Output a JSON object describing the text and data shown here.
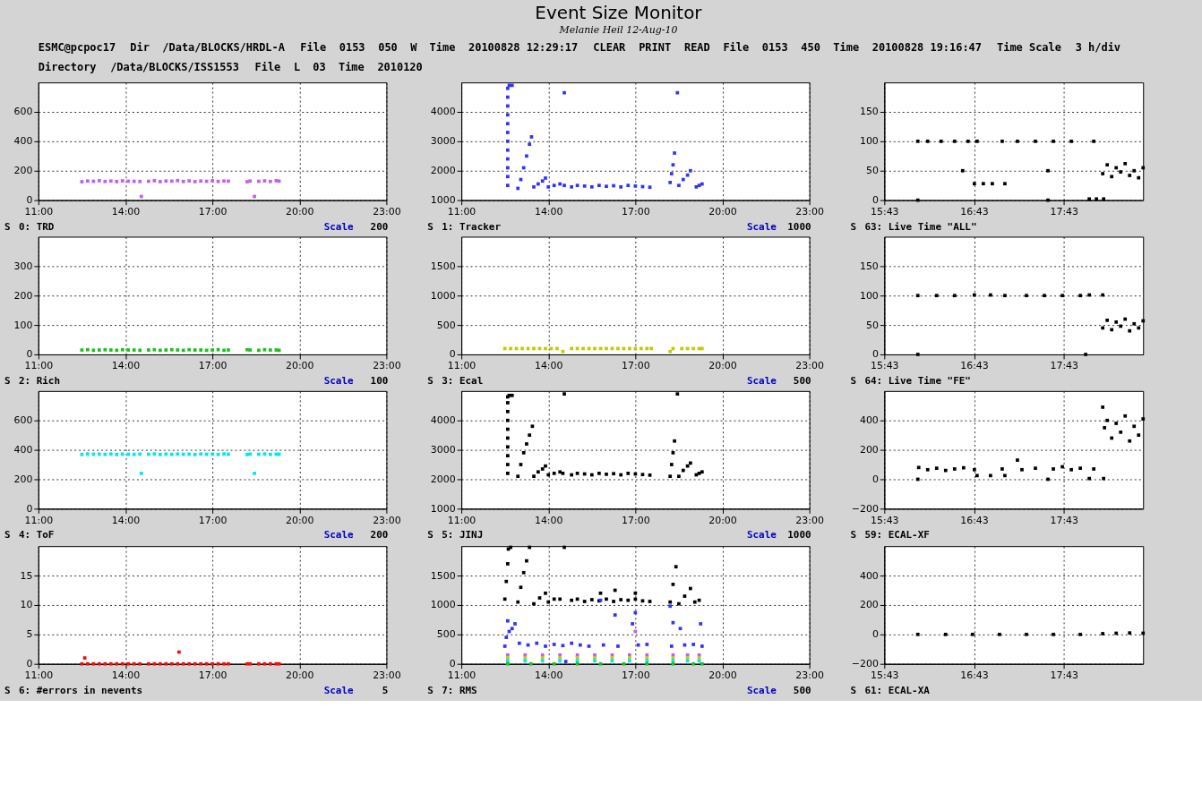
{
  "chart_data": [
    {
      "type": "other",
      "title": "Event Size Monitor",
      "subtitle": "Melanie Heil 12-Aug-10",
      "annotations": [
        "ESMC@pcpoc17",
        "Dir",
        "/Data/BLOCKS/HRDL-A",
        "File",
        "0153",
        "050",
        "W",
        "Time",
        "20100828 12:29:17",
        "CLEAR",
        "PRINT",
        "READ",
        "File",
        "0153",
        "450",
        "Time",
        "20100828 19:16:47",
        "Time Scale",
        "3 h/div",
        "Directory",
        "/Data/BLOCKS/ISS1553",
        "File",
        "L",
        "03",
        "Time",
        "2010120"
      ]
    },
    {
      "type": "scatter",
      "title": "0: TRD",
      "annotations": [
        "S",
        "Scale",
        "200"
      ],
      "xlim": [
        11,
        23
      ],
      "xticks": [
        {
          "value": 11,
          "label": "11:00"
        },
        {
          "value": 14,
          "label": "14:00"
        },
        {
          "value": 17,
          "label": "17:00"
        },
        {
          "value": 20,
          "label": "20:00"
        },
        {
          "value": 23,
          "label": "23:00"
        }
      ],
      "ylim": [
        0,
        800
      ],
      "yticks": [
        0,
        200,
        400,
        600
      ],
      "grid": true,
      "marker": "square",
      "series": [
        {
          "color": "#c060f0",
          "x": [
            12.5,
            12.7,
            12.9,
            13.1,
            13.3,
            13.5,
            13.7,
            13.9,
            14.1,
            14.3,
            14.5,
            14.55,
            14.8,
            15.0,
            15.2,
            15.4,
            15.6,
            15.8,
            16.0,
            16.2,
            16.4,
            16.6,
            16.8,
            17.0,
            17.2,
            17.4,
            17.55,
            18.2,
            18.3,
            18.45,
            18.6,
            18.8,
            19.0,
            19.2,
            19.3
          ],
          "values": [
            125,
            130,
            128,
            132,
            127,
            130,
            126,
            131,
            129,
            128,
            127,
            25,
            128,
            132,
            126,
            130,
            129,
            133,
            127,
            131,
            126,
            130,
            128,
            132,
            127,
            130,
            129,
            125,
            130,
            25,
            128,
            131,
            127,
            132,
            129
          ]
        }
      ]
    },
    {
      "type": "scatter",
      "title": "1: Tracker",
      "annotations": [
        "S",
        "Scale",
        "1000"
      ],
      "xlim": [
        11,
        23
      ],
      "xticks": [
        {
          "value": 11,
          "label": "11:00"
        },
        {
          "value": 14,
          "label": "14:00"
        },
        {
          "value": 17,
          "label": "17:00"
        },
        {
          "value": 20,
          "label": "20:00"
        },
        {
          "value": 23,
          "label": "23:00"
        }
      ],
      "ylim": [
        1000,
        5000
      ],
      "yticks": [
        1000,
        2000,
        3000,
        4000
      ],
      "grid": true,
      "marker": "square",
      "series": [
        {
          "color": "#3232ff",
          "x": [
            12.6,
            12.6,
            12.6,
            12.6,
            12.6,
            12.6,
            12.6,
            12.6,
            12.6,
            12.6,
            12.6,
            12.6,
            12.65,
            12.75,
            12.95,
            13.05,
            13.15,
            13.25,
            13.35,
            13.42,
            13.5,
            13.65,
            13.8,
            13.9,
            14.0,
            14.2,
            14.4,
            14.55,
            14.8,
            15.0,
            15.25,
            15.5,
            15.75,
            16.0,
            16.25,
            16.5,
            16.75,
            17.0,
            17.25,
            17.5,
            18.2,
            18.25,
            18.3,
            18.35,
            18.5,
            18.65,
            18.8,
            18.9,
            19.1,
            19.2,
            19.3,
            14.55,
            18.45
          ],
          "values": [
            1500,
            1800,
            2100,
            2400,
            2700,
            3000,
            3300,
            3600,
            3900,
            4200,
            4500,
            4800,
            4900,
            4900,
            1400,
            1700,
            2100,
            2500,
            2900,
            3150,
            1450,
            1550,
            1650,
            1750,
            1450,
            1500,
            1550,
            1500,
            1450,
            1500,
            1480,
            1450,
            1500,
            1470,
            1490,
            1450,
            1500,
            1480,
            1460,
            1440,
            1600,
            1900,
            2200,
            2600,
            1500,
            1700,
            1850,
            2000,
            1450,
            1500,
            1550,
            4650,
            4650
          ]
        }
      ]
    },
    {
      "type": "scatter",
      "title": "63: Live Time \"ALL\"",
      "annotations": [
        "S"
      ],
      "xlim": [
        15.7167,
        18.6
      ],
      "xticks": [
        {
          "value": 15.7167,
          "label": "15:43"
        },
        {
          "value": 16.7167,
          "label": "16:43"
        },
        {
          "value": 17.7167,
          "label": "17:43"
        }
      ],
      "ylim": [
        0,
        200
      ],
      "yticks": [
        0,
        50,
        100,
        150
      ],
      "grid": true,
      "marker": "square",
      "series": [
        {
          "color": "#000000",
          "x": [
            16.09,
            16.2,
            16.35,
            16.5,
            16.65,
            16.75,
            16.72,
            16.82,
            16.92,
            17.06,
            17.03,
            17.2,
            17.4,
            17.6,
            17.8,
            18.05,
            16.59,
            17.54,
            16.09,
            17.54,
            18.0,
            18.08,
            18.16,
            18.15,
            18.2,
            18.25,
            18.3,
            18.35,
            18.4,
            18.45,
            18.5,
            18.55,
            18.6
          ],
          "values": [
            100,
            100,
            100,
            100,
            100,
            100,
            28,
            28,
            28,
            28,
            100,
            100,
            100,
            100,
            100,
            100,
            50,
            50,
            0,
            0,
            2,
            2,
            2,
            45,
            60,
            40,
            55,
            48,
            62,
            42,
            50,
            38,
            55
          ]
        }
      ]
    },
    {
      "type": "scatter",
      "title": "2: Rich",
      "annotations": [
        "S",
        "Scale",
        "100"
      ],
      "xlim": [
        11,
        23
      ],
      "xticks": [
        {
          "value": 11,
          "label": "11:00"
        },
        {
          "value": 14,
          "label": "14:00"
        },
        {
          "value": 17,
          "label": "17:00"
        },
        {
          "value": 20,
          "label": "20:00"
        },
        {
          "value": 23,
          "label": "23:00"
        }
      ],
      "ylim": [
        0,
        400
      ],
      "yticks": [
        0,
        100,
        200,
        300
      ],
      "grid": true,
      "marker": "square",
      "series": [
        {
          "color": "#20c020",
          "x": [
            12.5,
            12.7,
            12.9,
            13.1,
            13.3,
            13.5,
            13.7,
            13.9,
            14.1,
            14.3,
            14.5,
            14.8,
            15.0,
            15.2,
            15.4,
            15.6,
            15.8,
            16.0,
            16.2,
            16.4,
            16.6,
            16.8,
            17.0,
            17.2,
            17.4,
            17.55,
            18.2,
            18.3,
            18.6,
            18.8,
            19.0,
            19.2,
            19.3
          ],
          "values": [
            15,
            16,
            14,
            15,
            16,
            15,
            14,
            16,
            15,
            15,
            14,
            15,
            16,
            14,
            15,
            16,
            15,
            14,
            16,
            15,
            15,
            14,
            15,
            16,
            14,
            15,
            16,
            15,
            14,
            16,
            15,
            15,
            14
          ]
        }
      ]
    },
    {
      "type": "scatter",
      "title": "3: Ecal",
      "annotations": [
        "S",
        "Scale",
        "500"
      ],
      "xlim": [
        11,
        23
      ],
      "xticks": [
        {
          "value": 11,
          "label": "11:00"
        },
        {
          "value": 14,
          "label": "14:00"
        },
        {
          "value": 17,
          "label": "17:00"
        },
        {
          "value": 20,
          "label": "20:00"
        },
        {
          "value": 23,
          "label": "23:00"
        }
      ],
      "ylim": [
        0,
        2000
      ],
      "yticks": [
        0,
        500,
        1000,
        1500
      ],
      "grid": true,
      "marker": "square",
      "series": [
        {
          "color": "#c8c800",
          "x": [
            12.5,
            12.7,
            12.9,
            13.1,
            13.3,
            13.5,
            13.7,
            13.9,
            14.1,
            14.3,
            14.5,
            14.8,
            15.0,
            15.2,
            15.4,
            15.6,
            15.8,
            16.0,
            16.2,
            16.4,
            16.6,
            16.8,
            17.0,
            17.2,
            17.4,
            17.55,
            18.2,
            18.3,
            18.6,
            18.8,
            19.0,
            19.2,
            19.3
          ],
          "values": [
            100,
            100,
            100,
            100,
            100,
            100,
            100,
            100,
            100,
            100,
            50,
            100,
            100,
            100,
            100,
            100,
            100,
            100,
            100,
            100,
            100,
            100,
            100,
            100,
            100,
            100,
            50,
            100,
            100,
            100,
            100,
            100,
            100
          ]
        }
      ]
    },
    {
      "type": "scatter",
      "title": "64: Live Time \"FE\"",
      "annotations": [
        "S"
      ],
      "xlim": [
        15.7167,
        18.6
      ],
      "xticks": [
        {
          "value": 15.7167,
          "label": "15:43"
        },
        {
          "value": 16.7167,
          "label": "16:43"
        },
        {
          "value": 17.7167,
          "label": "17:43"
        }
      ],
      "ylim": [
        0,
        200
      ],
      "yticks": [
        0,
        50,
        100,
        150
      ],
      "grid": true,
      "marker": "square",
      "series": [
        {
          "color": "#000000",
          "x": [
            16.09,
            16.3,
            16.5,
            16.72,
            16.9,
            17.06,
            17.3,
            17.5,
            17.7,
            17.9,
            18.0,
            18.15,
            16.09,
            17.96,
            18.15,
            18.2,
            18.25,
            18.3,
            18.35,
            18.4,
            18.45,
            18.5,
            18.55,
            18.6
          ],
          "values": [
            100,
            100,
            100,
            101,
            101,
            100,
            100,
            100,
            100,
            100,
            101,
            101,
            0,
            0,
            45,
            58,
            42,
            55,
            48,
            60,
            40,
            52,
            45,
            57
          ]
        }
      ]
    },
    {
      "type": "scatter",
      "title": "4: ToF",
      "annotations": [
        "S",
        "Scale",
        "200"
      ],
      "xlim": [
        11,
        23
      ],
      "xticks": [
        {
          "value": 11,
          "label": "11:00"
        },
        {
          "value": 14,
          "label": "14:00"
        },
        {
          "value": 17,
          "label": "17:00"
        },
        {
          "value": 20,
          "label": "20:00"
        },
        {
          "value": 23,
          "label": "23:00"
        }
      ],
      "ylim": [
        0,
        800
      ],
      "yticks": [
        0,
        200,
        400,
        600
      ],
      "grid": true,
      "marker": "square",
      "series": [
        {
          "color": "#00e8f0",
          "x": [
            12.5,
            12.7,
            12.9,
            13.1,
            13.3,
            13.5,
            13.7,
            13.9,
            14.1,
            14.3,
            14.5,
            14.55,
            14.8,
            15.0,
            15.2,
            15.4,
            15.6,
            15.8,
            16.0,
            16.2,
            16.4,
            16.6,
            16.8,
            17.0,
            17.2,
            17.4,
            17.55,
            18.2,
            18.3,
            18.45,
            18.6,
            18.8,
            19.0,
            19.2,
            19.3
          ],
          "values": [
            368,
            372,
            370,
            371,
            369,
            372,
            368,
            371,
            370,
            369,
            371,
            240,
            370,
            372,
            368,
            371,
            369,
            372,
            370,
            371,
            368,
            372,
            370,
            371,
            369,
            372,
            370,
            368,
            371,
            240,
            370,
            372,
            369,
            371,
            370
          ]
        }
      ]
    },
    {
      "type": "scatter",
      "title": "5: JINJ",
      "annotations": [
        "S",
        "Scale",
        "1000"
      ],
      "xlim": [
        11,
        23
      ],
      "xticks": [
        {
          "value": 11,
          "label": "11:00"
        },
        {
          "value": 14,
          "label": "14:00"
        },
        {
          "value": 17,
          "label": "17:00"
        },
        {
          "value": 20,
          "label": "20:00"
        },
        {
          "value": 23,
          "label": "23:00"
        }
      ],
      "ylim": [
        1000,
        5000
      ],
      "yticks": [
        1000,
        2000,
        3000,
        4000
      ],
      "grid": true,
      "marker": "square",
      "series": [
        {
          "color": "#000000",
          "x": [
            12.6,
            12.6,
            12.6,
            12.6,
            12.6,
            12.6,
            12.6,
            12.6,
            12.6,
            12.6,
            12.65,
            12.75,
            12.95,
            13.05,
            13.15,
            13.25,
            13.35,
            13.45,
            13.5,
            13.65,
            13.8,
            13.9,
            14.0,
            14.2,
            14.4,
            14.5,
            14.8,
            15.0,
            15.25,
            15.5,
            15.75,
            16.0,
            16.25,
            16.5,
            16.75,
            17.0,
            17.25,
            17.5,
            18.2,
            18.25,
            18.3,
            18.35,
            18.5,
            18.65,
            18.8,
            18.9,
            19.1,
            19.2,
            19.3,
            14.55,
            18.45
          ],
          "values": [
            2200,
            2500,
            2800,
            3100,
            3400,
            3700,
            4000,
            4300,
            4600,
            4800,
            4850,
            4850,
            2100,
            2500,
            2900,
            3200,
            3500,
            3800,
            2100,
            2250,
            2350,
            2450,
            2150,
            2200,
            2250,
            2200,
            2150,
            2200,
            2180,
            2150,
            2200,
            2170,
            2190,
            2150,
            2200,
            2180,
            2160,
            2140,
            2100,
            2500,
            2900,
            3300,
            2100,
            2300,
            2450,
            2550,
            2150,
            2200,
            2250,
            4900,
            4900
          ]
        }
      ]
    },
    {
      "type": "scatter",
      "title": "59: ECAL-XF",
      "annotations": [
        "S"
      ],
      "xlim": [
        15.7167,
        18.6
      ],
      "xticks": [
        {
          "value": 15.7167,
          "label": "15:43"
        },
        {
          "value": 16.7167,
          "label": "16:43"
        },
        {
          "value": 17.7167,
          "label": "17:43"
        }
      ],
      "ylim": [
        -200,
        600
      ],
      "yticks": [
        -200,
        0,
        200,
        400
      ],
      "grid": true,
      "marker": "square",
      "series": [
        {
          "color": "#000000",
          "x": [
            16.09,
            16.1,
            16.2,
            16.3,
            16.4,
            16.5,
            16.6,
            16.72,
            16.75,
            16.9,
            17.06,
            17.03,
            17.2,
            17.25,
            17.4,
            17.54,
            17.6,
            17.7,
            17.8,
            17.9,
            18.05,
            18.0,
            18.16,
            18.15,
            18.17,
            18.2,
            18.25,
            18.3,
            18.35,
            18.4,
            18.45,
            18.5,
            18.55,
            18.6
          ],
          "values": [
            0,
            80,
            65,
            75,
            60,
            70,
            78,
            65,
            25,
            25,
            25,
            70,
            130,
            65,
            75,
            0,
            70,
            85,
            65,
            75,
            70,
            5,
            5,
            490,
            350,
            400,
            280,
            380,
            320,
            430,
            260,
            360,
            300,
            410
          ]
        }
      ]
    },
    {
      "type": "scatter",
      "title": "6: #errors in nevents",
      "annotations": [
        "S",
        "Scale",
        "5"
      ],
      "xlim": [
        11,
        23
      ],
      "xticks": [
        {
          "value": 11,
          "label": "11:00"
        },
        {
          "value": 14,
          "label": "14:00"
        },
        {
          "value": 17,
          "label": "17:00"
        },
        {
          "value": 20,
          "label": "20:00"
        },
        {
          "value": 23,
          "label": "23:00"
        }
      ],
      "ylim": [
        0,
        20
      ],
      "yticks": [
        0,
        5,
        10,
        15
      ],
      "grid": true,
      "marker": "square",
      "series": [
        {
          "color": "#f01010",
          "x": [
            12.5,
            12.7,
            12.9,
            13.1,
            13.3,
            13.5,
            13.7,
            13.9,
            14.1,
            14.3,
            14.5,
            14.8,
            15.0,
            15.2,
            15.4,
            15.6,
            15.8,
            16.0,
            16.2,
            16.4,
            16.6,
            16.8,
            17.0,
            17.2,
            17.4,
            17.55,
            18.2,
            18.3,
            18.6,
            18.8,
            19.0,
            19.2,
            19.3,
            12.6,
            15.85
          ],
          "values": [
            0,
            0,
            0,
            0,
            0,
            0,
            0,
            0,
            0,
            0,
            0,
            0,
            0,
            0,
            0,
            0,
            0,
            0,
            0,
            0,
            0,
            0,
            0,
            0,
            0,
            0,
            0,
            0,
            0,
            0,
            0,
            0,
            0,
            1,
            2
          ]
        }
      ]
    },
    {
      "type": "scatter",
      "title": "7: RMS",
      "annotations": [
        "S",
        "Scale",
        "500"
      ],
      "xlim": [
        11,
        23
      ],
      "xticks": [
        {
          "value": 11,
          "label": "11:00"
        },
        {
          "value": 14,
          "label": "14:00"
        },
        {
          "value": 17,
          "label": "17:00"
        },
        {
          "value": 20,
          "label": "20:00"
        },
        {
          "value": 23,
          "label": "23:00"
        }
      ],
      "ylim": [
        0,
        2000
      ],
      "yticks": [
        0,
        500,
        1000,
        1500
      ],
      "grid": true,
      "marker": "square",
      "series": [
        {
          "color": "#000000",
          "x": [
            12.5,
            12.55,
            12.6,
            12.62,
            12.7,
            12.95,
            13.05,
            13.15,
            13.25,
            13.35,
            13.5,
            13.7,
            13.9,
            14.0,
            14.2,
            14.4,
            14.8,
            15.0,
            15.25,
            15.5,
            15.75,
            16.0,
            16.25,
            16.5,
            16.75,
            17.0,
            17.25,
            17.5,
            15.8,
            16.3,
            17.0,
            14.55,
            18.2,
            18.3,
            18.4,
            18.5,
            18.7,
            18.9,
            19.05,
            19.2
          ],
          "values": [
            1100,
            1400,
            1700,
            1950,
            1980,
            1050,
            1300,
            1550,
            1750,
            1980,
            1020,
            1120,
            1200,
            1050,
            1100,
            1100,
            1080,
            1100,
            1060,
            1090,
            1070,
            1100,
            1060,
            1090,
            1080,
            1100,
            1070,
            1060,
            1200,
            1250,
            1200,
            1980,
            1050,
            1350,
            1650,
            1020,
            1150,
            1280,
            1050,
            1080
          ]
        },
        {
          "color": "#3232ff",
          "x": [
            12.5,
            12.55,
            12.6,
            12.65,
            12.75,
            12.85,
            13.0,
            13.3,
            13.6,
            13.9,
            14.2,
            14.5,
            14.6,
            14.8,
            15.1,
            15.4,
            15.8,
            15.9,
            16.3,
            16.4,
            16.9,
            17.0,
            17.1,
            17.4,
            18.2,
            18.25,
            18.3,
            18.55,
            18.7,
            19.0,
            19.25,
            19.3
          ],
          "values": [
            300,
            450,
            730,
            550,
            600,
            680,
            350,
            320,
            350,
            300,
            330,
            310,
            40,
            350,
            320,
            300,
            1080,
            320,
            830,
            300,
            680,
            870,
            320,
            330,
            980,
            300,
            700,
            600,
            320,
            330,
            680,
            300
          ]
        },
        {
          "color": "#c060f0",
          "x": [
            12.6,
            13.2,
            13.8,
            14.4,
            15.0,
            15.6,
            16.2,
            16.8,
            17.0,
            17.4,
            18.3,
            18.8,
            19.2
          ],
          "values": [
            150,
            150,
            150,
            150,
            150,
            150,
            150,
            150,
            550,
            150,
            150,
            150,
            150
          ]
        },
        {
          "color": "#c8c800",
          "x": [
            12.6,
            13.2,
            13.8,
            14.4,
            15.0,
            15.6,
            16.2,
            16.8,
            17.4,
            18.3,
            18.8,
            19.2
          ],
          "values": [
            100,
            100,
            100,
            100,
            100,
            100,
            100,
            100,
            100,
            100,
            100,
            100
          ]
        },
        {
          "color": "#00e8f0",
          "x": [
            12.6,
            13.2,
            13.8,
            14.4,
            15.0,
            15.6,
            16.2,
            16.8,
            17.4,
            18.3,
            18.8,
            19.2
          ],
          "values": [
            50,
            50,
            50,
            50,
            50,
            50,
            50,
            50,
            50,
            50,
            50,
            50
          ]
        },
        {
          "color": "#20c020",
          "x": [
            12.6,
            13.4,
            14.2,
            15.0,
            15.8,
            16.6,
            17.4,
            18.3,
            19.0,
            19.3
          ],
          "values": [
            0,
            0,
            0,
            0,
            0,
            0,
            0,
            0,
            0,
            0
          ]
        }
      ]
    },
    {
      "type": "scatter",
      "title": "61: ECAL-XA",
      "annotations": [
        "S"
      ],
      "xlim": [
        15.7167,
        18.6
      ],
      "xticks": [
        {
          "value": 15.7167,
          "label": "15:43"
        },
        {
          "value": 16.7167,
          "label": "16:43"
        },
        {
          "value": 17.7167,
          "label": "17:43"
        }
      ],
      "ylim": [
        -200,
        600
      ],
      "yticks": [
        -200,
        0,
        200,
        400
      ],
      "grid": true,
      "marker": "square",
      "series": [
        {
          "color": "#000000",
          "x": [
            16.09,
            16.4,
            16.7,
            17.0,
            17.3,
            17.6,
            17.9,
            18.15,
            18.3,
            18.45,
            18.6
          ],
          "values": [
            0,
            0,
            0,
            0,
            0,
            0,
            0,
            5,
            8,
            10,
            8
          ]
        }
      ]
    }
  ]
}
